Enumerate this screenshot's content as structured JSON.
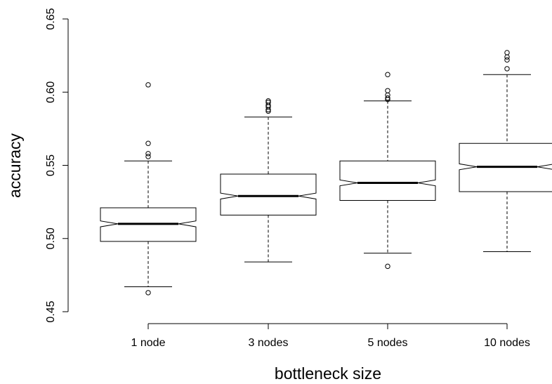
{
  "chart_data": {
    "type": "boxplot",
    "notched": true,
    "xlabel": "bottleneck size",
    "ylabel": "accuracy",
    "ylim": [
      0.45,
      0.65
    ],
    "yticks": [
      0.45,
      0.5,
      0.55,
      0.6,
      0.65
    ],
    "ytick_labels": [
      "0.45",
      "0.50",
      "0.55",
      "0.60",
      "0.65"
    ],
    "categories": [
      "1 node",
      "3 nodes",
      "5 nodes",
      "10 nodes"
    ],
    "boxes": [
      {
        "category": "1 node",
        "whisker_low": 0.467,
        "q1": 0.498,
        "median": 0.51,
        "q3": 0.521,
        "whisker_high": 0.553,
        "notch_low": 0.508,
        "notch_high": 0.512,
        "outliers": [
          0.463,
          0.556,
          0.558,
          0.565,
          0.605
        ]
      },
      {
        "category": "3 nodes",
        "whisker_low": 0.484,
        "q1": 0.516,
        "median": 0.529,
        "q3": 0.544,
        "whisker_high": 0.583,
        "notch_low": 0.527,
        "notch_high": 0.531,
        "outliers": [
          0.587,
          0.588,
          0.59,
          0.591,
          0.593,
          0.594
        ]
      },
      {
        "category": "5 nodes",
        "whisker_low": 0.49,
        "q1": 0.526,
        "median": 0.538,
        "q3": 0.553,
        "whisker_high": 0.594,
        "notch_low": 0.536,
        "notch_high": 0.54,
        "outliers": [
          0.481,
          0.595,
          0.596,
          0.598,
          0.601,
          0.612
        ]
      },
      {
        "category": "10 nodes",
        "whisker_low": 0.491,
        "q1": 0.532,
        "median": 0.549,
        "q3": 0.565,
        "whisker_high": 0.612,
        "notch_low": 0.547,
        "notch_high": 0.551,
        "outliers": [
          0.616,
          0.622,
          0.624,
          0.627
        ]
      }
    ]
  }
}
